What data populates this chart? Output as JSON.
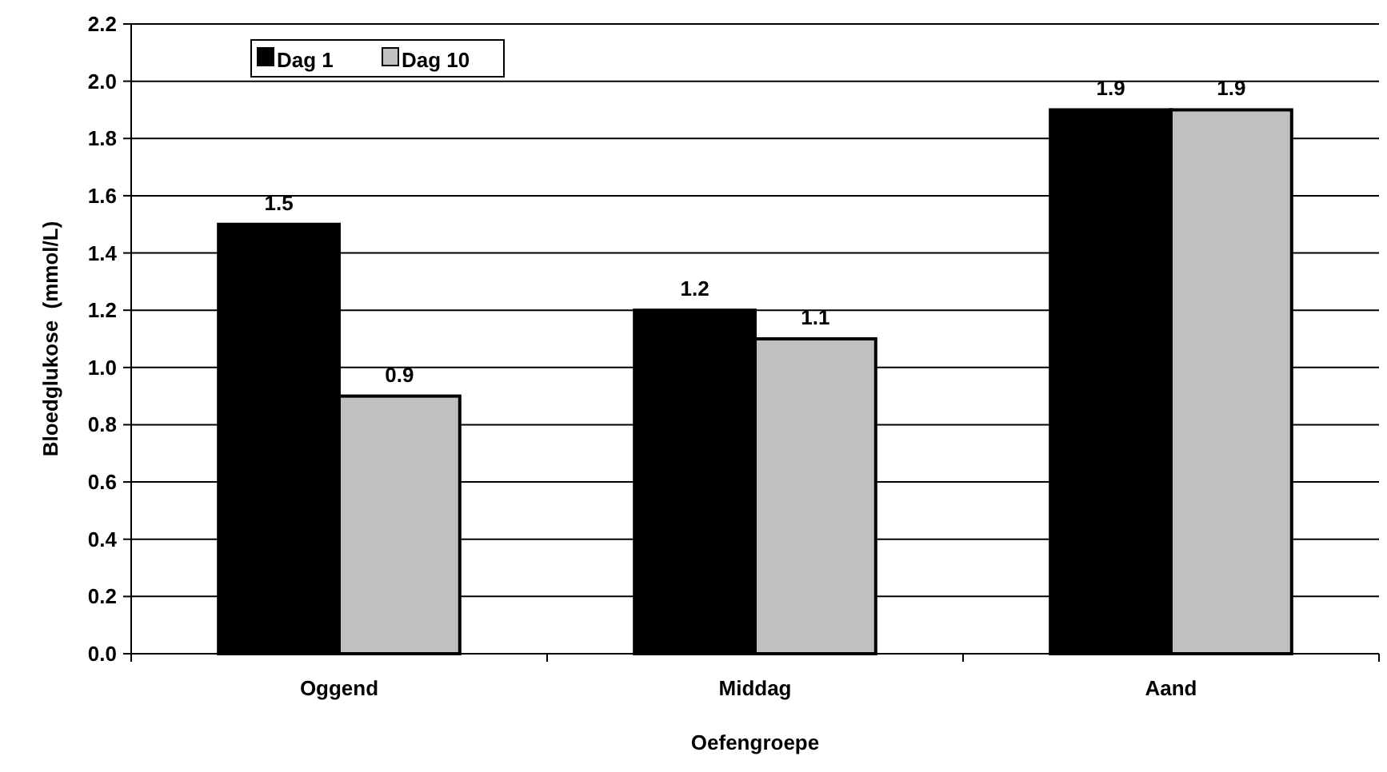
{
  "chart_data": {
    "type": "bar",
    "xlabel": "Oefengroepe",
    "ylabel": "Bloedglukose  (mmol/L)",
    "categories": [
      "Oggend",
      "Middag",
      "Aand"
    ],
    "series": [
      {
        "name": "Dag 1",
        "color": "#000000",
        "values": [
          1.5,
          1.2,
          1.9
        ]
      },
      {
        "name": "Dag 10",
        "color": "#c0c0c0",
        "values": [
          0.9,
          1.1,
          1.9
        ]
      }
    ],
    "ylim": [
      0,
      2.2
    ],
    "yticks": [
      "0.0",
      "0.2",
      "0.4",
      "0.6",
      "0.8",
      "1.0",
      "1.2",
      "1.4",
      "1.6",
      "1.8",
      "2.0",
      "2.2"
    ],
    "grid": "y",
    "legend": "top left",
    "data_labels": true
  }
}
